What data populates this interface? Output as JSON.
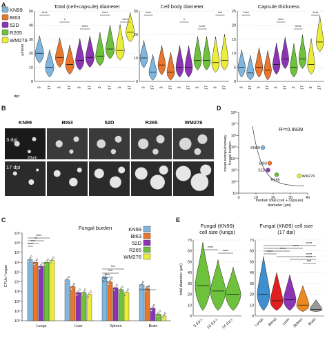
{
  "strains": [
    {
      "name": "KN99",
      "color": "#7fb6e0"
    },
    {
      "name": "Bt63",
      "color": "#e8762d"
    },
    {
      "name": "52D",
      "color": "#8b35b4"
    },
    {
      "name": "R265",
      "color": "#6ec13b"
    },
    {
      "name": "WM276",
      "color": "#ecec3a"
    }
  ],
  "panelA": {
    "letter": "A",
    "ylabel": "μmeter",
    "dpi_label": "dpi:",
    "timepoint_labels": [
      "3",
      "17"
    ],
    "plots": [
      {
        "title": "Total (cell+capsule) diameter",
        "yticks": [
          "0",
          "10",
          "20",
          "30",
          "40",
          "50"
        ],
        "ymax": 50,
        "stars": [
          "****",
          "*",
          "****",
          "****",
          "****"
        ],
        "medians": [
          [
            20,
            10
          ],
          [
            17,
            12
          ],
          [
            15,
            17
          ],
          [
            18,
            23
          ],
          [
            22,
            35
          ]
        ]
      },
      {
        "title": "Cell body diameter",
        "yticks": [
          "0",
          "10",
          "20",
          "30"
        ],
        "ymax": 30,
        "stars": [
          "****",
          "*",
          "****",
          "***"
        ],
        "medians": [
          [
            10,
            4
          ],
          [
            7,
            4
          ],
          [
            6,
            6
          ],
          [
            9,
            9
          ],
          [
            8,
            9
          ]
        ]
      },
      {
        "title": "Capsule thickness",
        "yticks": [
          "0",
          "5",
          "10",
          "15",
          "20",
          "25"
        ],
        "ymax": 25,
        "stars": [
          "****",
          "****",
          "****",
          "****"
        ],
        "medians": [
          [
            5,
            3
          ],
          [
            5,
            4
          ],
          [
            6,
            8
          ],
          [
            5,
            8
          ],
          [
            6,
            14
          ]
        ]
      }
    ]
  },
  "panelB": {
    "letter": "B",
    "row_labels": [
      "3 dpi",
      "17 dpi"
    ],
    "scale_label": "20μm",
    "strain_order": [
      "KN99",
      "Bt63",
      "52D",
      "R265",
      "WM276"
    ]
  },
  "panelD": {
    "letter": "D",
    "ylabel_lines": [
      "mean extrapulmonary",
      "fungal burden"
    ],
    "xlabel_lines": [
      "median total (cell + capsule)",
      "diameter (μm)"
    ],
    "r2": "R²=0.9939",
    "xticks": [
      "0",
      "10",
      "20",
      "30",
      "40"
    ],
    "yticks": [
      "10",
      "10²",
      "10³",
      "10⁴",
      "10⁵",
      "10⁶",
      "10⁷",
      "10⁸"
    ]
  },
  "panelC": {
    "letter": "C",
    "title": "Fungal burden",
    "ylabel": "CFUs / organ",
    "yticks": [
      "10⁰",
      "10¹",
      "10²",
      "10³",
      "10⁴",
      "10⁵",
      "10⁶",
      "10⁷",
      "10⁸",
      "10⁹"
    ],
    "organs": [
      "Lungs",
      "Liver",
      "Spleen",
      "Brain"
    ],
    "stars_lungs": [
      "****",
      "***",
      "**",
      "****"
    ],
    "stars_spleen": [
      "***",
      "***",
      "***",
      "**"
    ],
    "stars_brain": [
      "***"
    ]
  },
  "panelE": {
    "letter": "E",
    "left_title_lines": [
      "Fungal (KN99)",
      "cell size (lungs)"
    ],
    "right_title_lines": [
      "Fungal (KN99) cell size",
      "(17 dpi)"
    ],
    "ylabel": "total diameter (μm)",
    "yticks": [
      "0",
      "10",
      "20",
      "30",
      "40",
      "50",
      "60",
      "70"
    ],
    "left_cats": [
      "3 d.p.i.",
      "10 d.p.i.",
      "14 d.p.i."
    ],
    "right_cats": [
      "Lungs",
      "Blood",
      "Liver",
      "Spleen",
      "Brain"
    ],
    "left_stars": [
      "****",
      "****"
    ],
    "right_stars": [
      "****",
      "****",
      "****",
      "****",
      "****",
      "****",
      "***"
    ]
  }
}
